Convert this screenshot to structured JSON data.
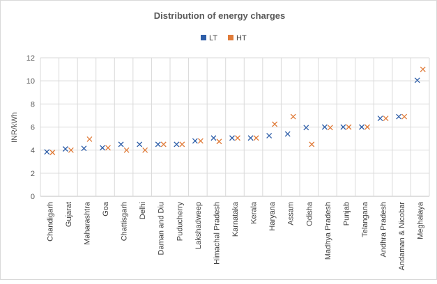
{
  "chart_data": {
    "type": "scatter",
    "title": "Distribution of energy charges",
    "xlabel": "",
    "ylabel": "INR/kWh",
    "ylim": [
      0,
      12
    ],
    "yticks": [
      0,
      2,
      4,
      6,
      8,
      10,
      12
    ],
    "grid": true,
    "legend_position": "top",
    "categories": [
      "Chandigarh",
      "Gujarat",
      "Maharashtra",
      "Goa",
      "Chattisgarh",
      "Delhi",
      "Daman and Diu",
      "Puducherry",
      "Lakshadweep",
      "Himachal Pradesh",
      "Karnataka",
      "Kerala",
      "Haryana",
      "Assam",
      "Odisha",
      "Madhya Pradesh",
      "Punjab",
      "Telangana",
      "Andhra Pradesh",
      "Andaman & Nicobar",
      "Meghalaya"
    ],
    "series": [
      {
        "name": "LT",
        "color": "#2e5ea8",
        "marker": "x",
        "values": [
          3.85,
          4.1,
          4.15,
          4.2,
          4.5,
          4.5,
          4.5,
          4.5,
          4.8,
          5.05,
          5.05,
          5.05,
          5.25,
          5.4,
          5.95,
          6.0,
          6.0,
          6.0,
          6.75,
          6.9,
          10.05
        ]
      },
      {
        "name": "HT",
        "color": "#e07b39",
        "marker": "x",
        "values": [
          3.8,
          4.0,
          4.95,
          4.2,
          4.0,
          4.0,
          4.5,
          4.5,
          4.8,
          4.75,
          5.05,
          5.05,
          6.25,
          6.9,
          4.5,
          5.95,
          6.0,
          6.0,
          6.75,
          6.9,
          11.0
        ]
      }
    ]
  }
}
